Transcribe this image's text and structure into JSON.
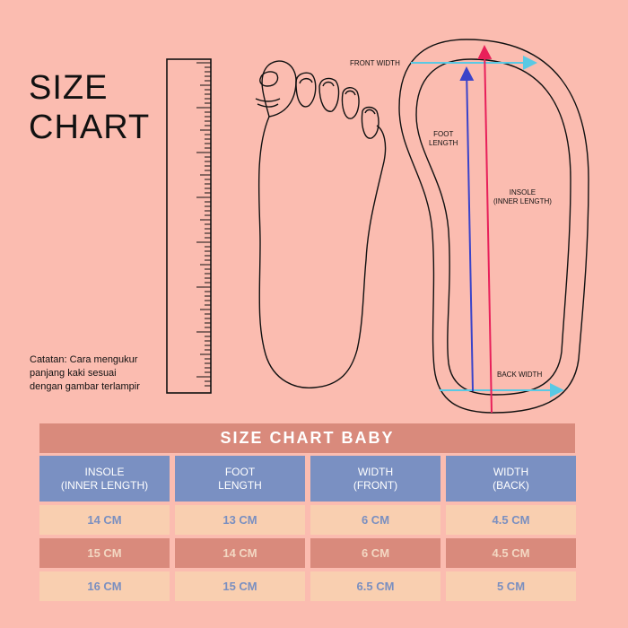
{
  "title": {
    "line1": "SIZE",
    "line2": "CHART"
  },
  "note": {
    "line1": "Catatan: Cara mengukur",
    "line2": "panjang kaki sesuai",
    "line3": "dengan gambar terlampir"
  },
  "diagram": {
    "front_width": "FRONT WIDTH",
    "foot_length_1": "FOOT",
    "foot_length_2": "LENGTH",
    "insole_1": "INSOLE",
    "insole_2": "(INNER LENGTH)",
    "back_width": "BACK WIDTH"
  },
  "colors": {
    "background": "#fbbcb0",
    "title_bar": "#d98a7c",
    "header": "#7a90c2",
    "row_light": "#f9cfb0",
    "row_dark": "#d98a7c",
    "arrow_cyan": "#59c9e4",
    "arrow_blue": "#3a43c9",
    "arrow_red": "#e8205a"
  },
  "table": {
    "title": "SIZE CHART BABY",
    "headers": [
      {
        "line1": "INSOLE",
        "line2": "(INNER LENGTH)"
      },
      {
        "line1": "FOOT",
        "line2": "LENGTH"
      },
      {
        "line1": "WIDTH",
        "line2": "(FRONT)"
      },
      {
        "line1": "WIDTH",
        "line2": "(BACK)"
      }
    ],
    "rows": [
      [
        "14 CM",
        "13 CM",
        "6 CM",
        "4.5 CM"
      ],
      [
        "15 CM",
        "14 CM",
        "6 CM",
        "4.5 CM"
      ],
      [
        "16 CM",
        "15 CM",
        "6.5 CM",
        "5 CM"
      ]
    ]
  }
}
